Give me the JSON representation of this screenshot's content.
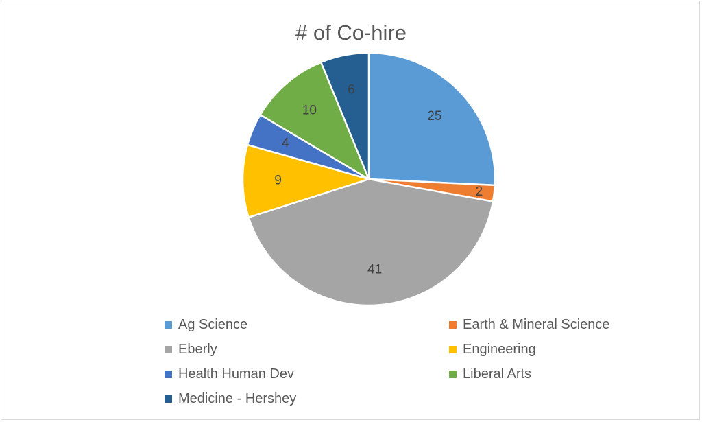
{
  "chart_data": {
    "type": "pie",
    "title": "# of Co-hire",
    "categories": [
      "Ag Science",
      "Earth & Mineral Science",
      "Eberly",
      "Engineering",
      "Health Human Dev",
      "Liberal Arts",
      "Medicine - Hershey"
    ],
    "values": [
      25,
      2,
      41,
      9,
      4,
      10,
      6
    ],
    "data_labels": [
      "25",
      "2",
      "41",
      "9",
      "4",
      "10",
      "6"
    ],
    "colors": [
      "#5B9BD5",
      "#ED7D31",
      "#A5A5A5",
      "#FFC000",
      "#4472C4",
      "#70AD47",
      "#255E91"
    ],
    "legend_position": "bottom",
    "start_angle": "12 o'clock, clockwise"
  }
}
